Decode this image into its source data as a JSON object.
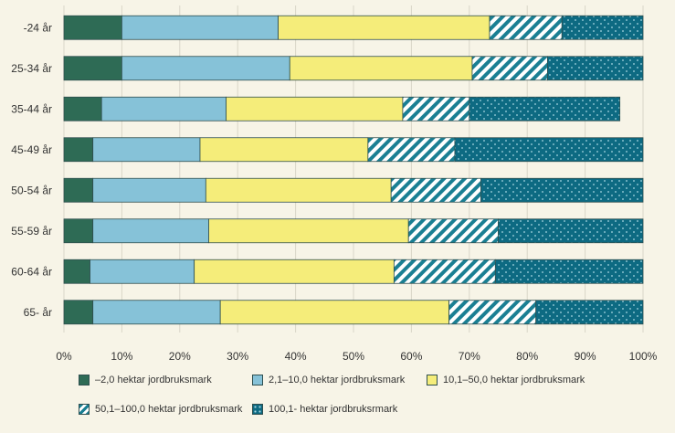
{
  "chart_data": {
    "type": "bar",
    "orientation": "horizontal",
    "stacked": true,
    "categories": [
      "-24 år",
      "25-34 år",
      "35-44 år",
      "45-49 år",
      "50-54 år",
      "55-59 år",
      "60-64 år",
      "65- år"
    ],
    "series": [
      {
        "name": "–2,0 hektar jordbruksmark",
        "color": "#2e6b55",
        "pattern": "solid",
        "values": [
          10,
          10,
          6.5,
          5,
          5,
          5,
          4.5,
          5
        ]
      },
      {
        "name": "2,1–10,0 hektar jordbruksmark",
        "color": "#86c2d8",
        "pattern": "solid",
        "values": [
          27,
          29,
          21.5,
          18.5,
          19.5,
          20,
          18,
          22
        ]
      },
      {
        "name": "10,1–50,0 hektar jordbruksmark",
        "color": "#f5ed7a",
        "pattern": "solid",
        "values": [
          36.5,
          31.5,
          30.5,
          29,
          32,
          34.5,
          34.5,
          39.5
        ]
      },
      {
        "name": "50,1–100,0 hektar jordbruksmark",
        "color": "#1a7f93",
        "pattern": "diagonal-stripes",
        "values": [
          12.5,
          13,
          11.5,
          15,
          15.5,
          15.5,
          17.5,
          15
        ]
      },
      {
        "name": "100,1- hektar jordbruksrmark",
        "color": "#0d6a82",
        "pattern": "dots",
        "values": [
          14,
          16.5,
          26,
          32.5,
          28,
          25,
          25.5,
          18.5
        ]
      }
    ],
    "x_ticks": [
      "0%",
      "10%",
      "20%",
      "30%",
      "40%",
      "50%",
      "60%",
      "70%",
      "80%",
      "90%",
      "100%"
    ],
    "xlim": [
      0,
      100
    ],
    "grid": true,
    "legend": "bottom"
  }
}
